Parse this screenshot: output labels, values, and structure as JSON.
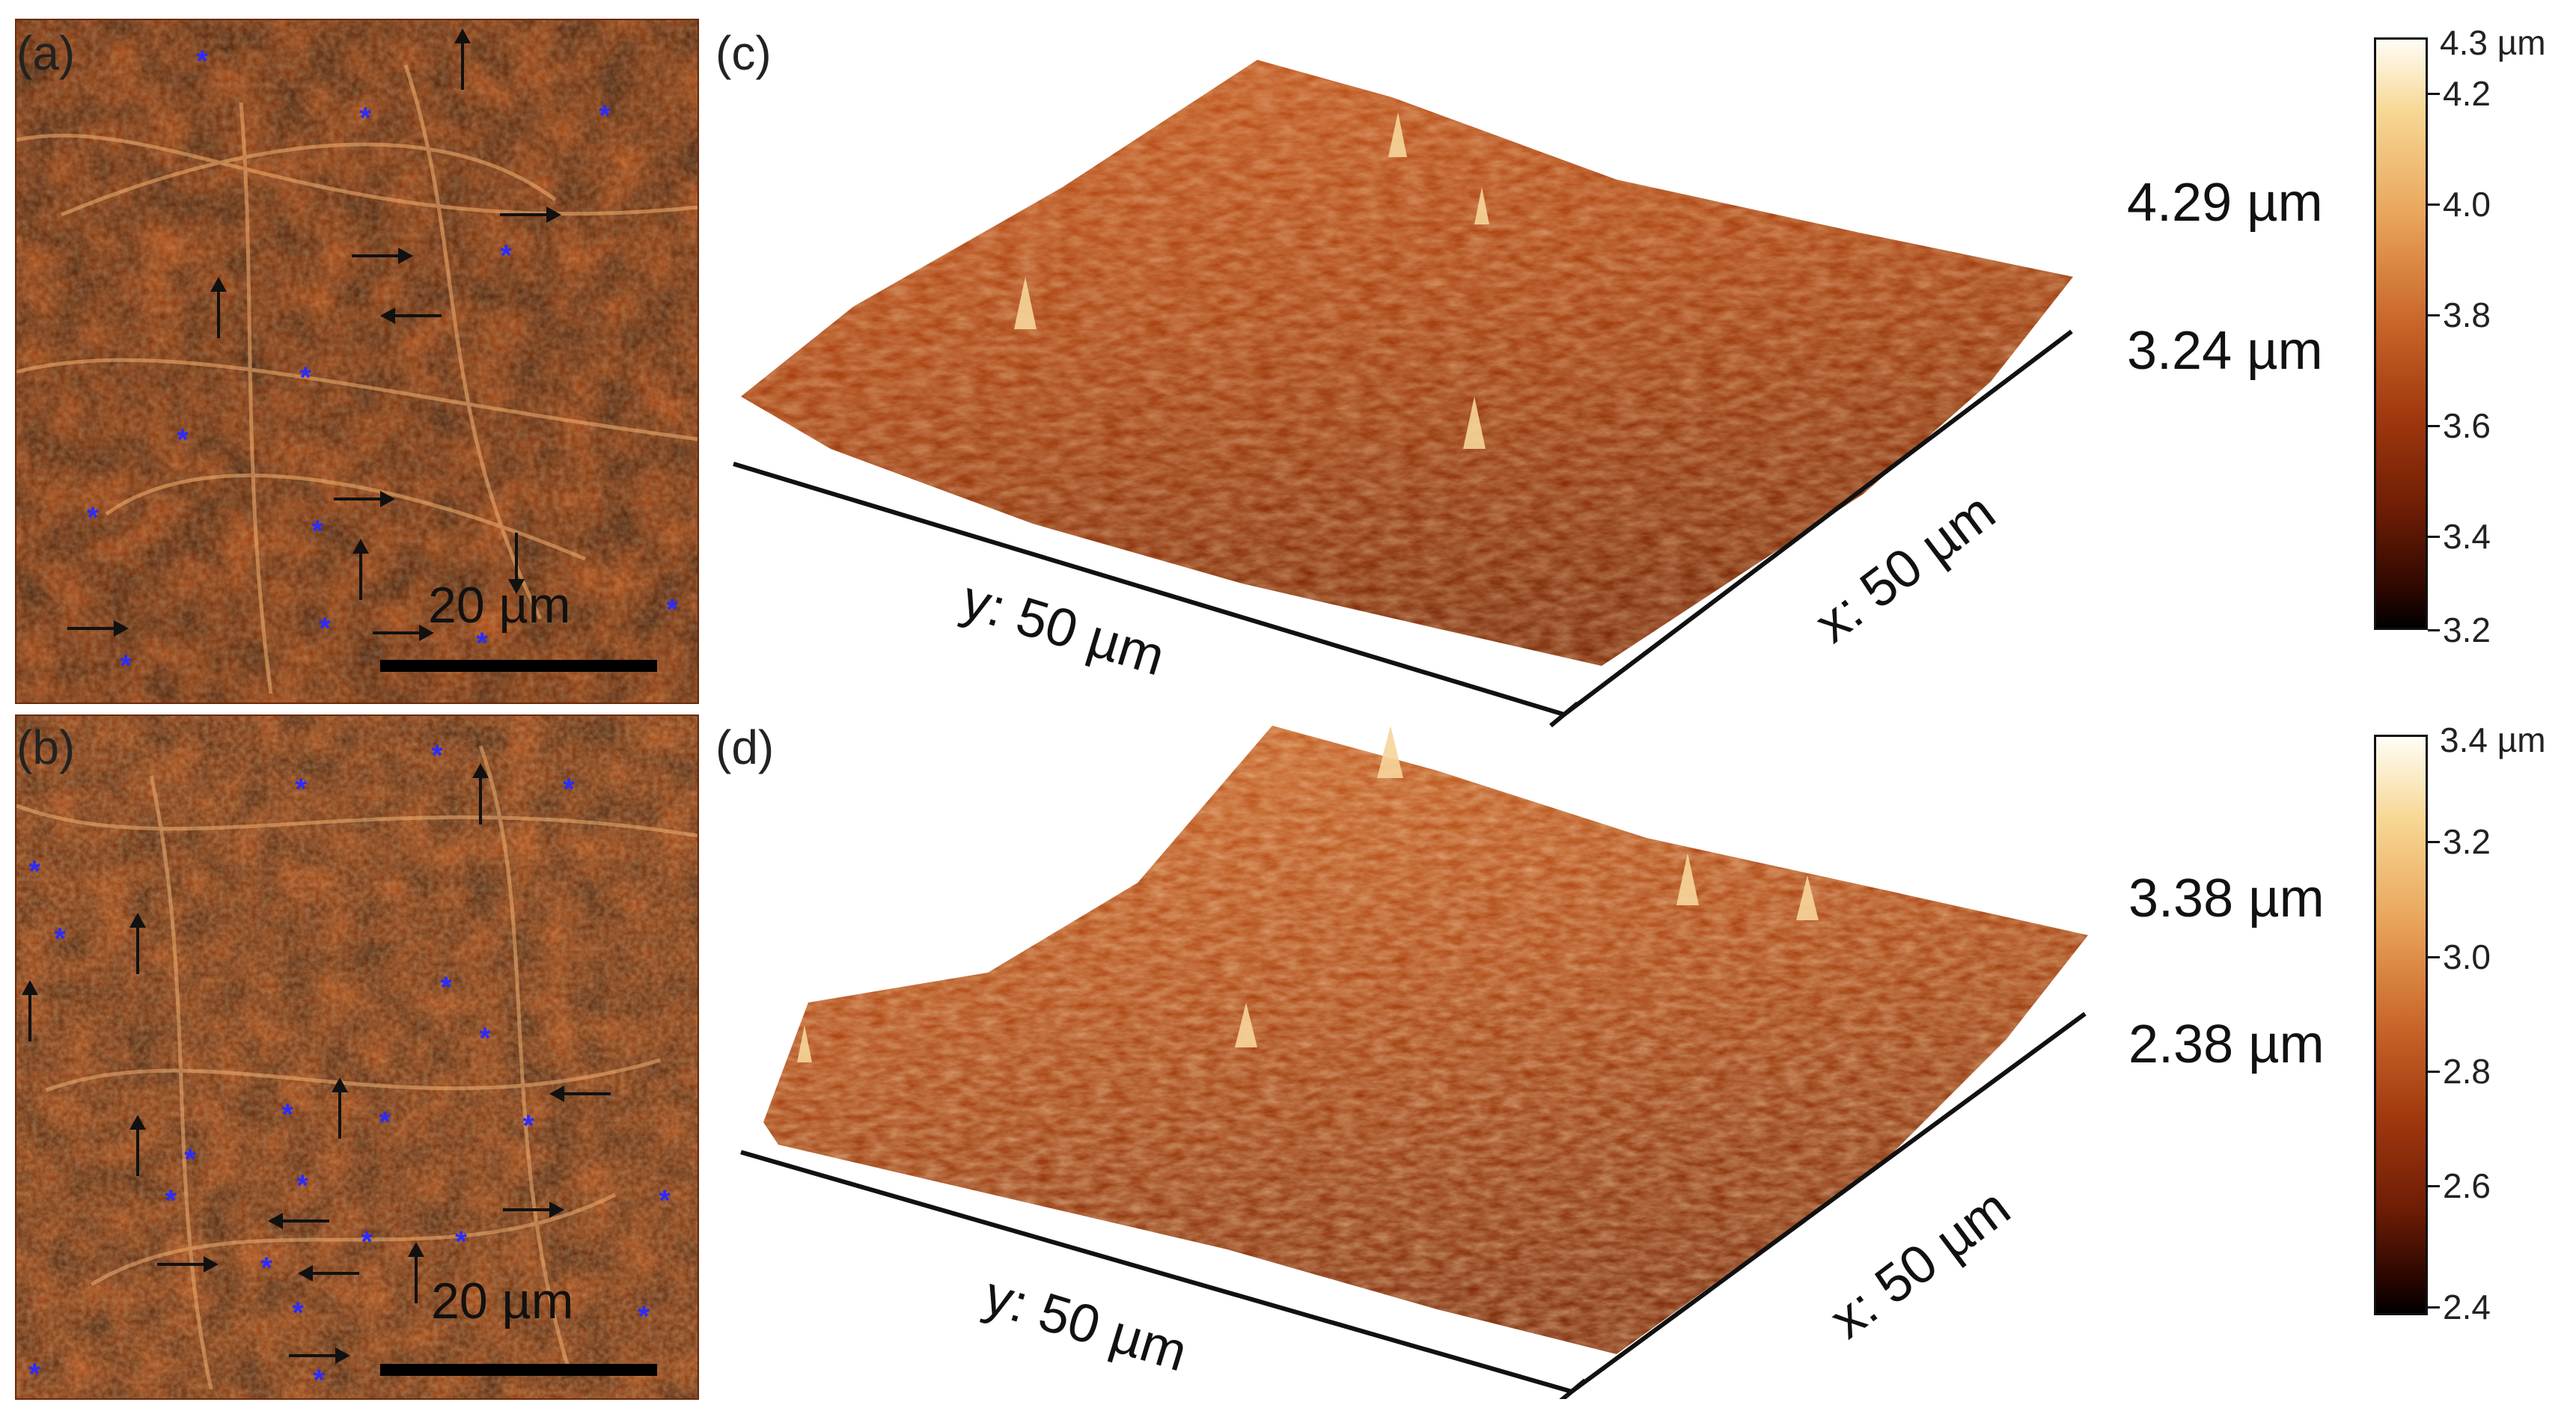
{
  "panels": {
    "a": {
      "label": "(a)",
      "scale_bar": "20 µm"
    },
    "b": {
      "label": "(b)",
      "scale_bar": "20 µm"
    },
    "c": {
      "label": "(c)",
      "z_top": "4.29 µm",
      "z_bottom": "3.24 µm",
      "x_axis": "x: 50 µm",
      "y_axis": "y: 50 µm",
      "colorbar": {
        "max_label": "4.3 µm",
        "ticks": [
          "4.2",
          "4.0",
          "3.8",
          "3.6",
          "3.4",
          "3.2"
        ]
      }
    },
    "d": {
      "label": "(d)",
      "z_top": "3.38 µm",
      "z_bottom": "2.38 µm",
      "x_axis": "x: 50 µm",
      "y_axis": "y: 50 µm",
      "colorbar": {
        "max_label": "3.4 µm",
        "ticks": [
          "3.2",
          "3.0",
          "2.8",
          "2.6",
          "2.4"
        ]
      }
    }
  },
  "colors": {
    "afm_dark": "#2a0600",
    "afm_mid": "#a8400c",
    "afm_light": "#ffe8a8",
    "markers": "#2b2bff"
  },
  "icons": [
    "blue-asterisk-marker",
    "black-arrow-marker"
  ]
}
